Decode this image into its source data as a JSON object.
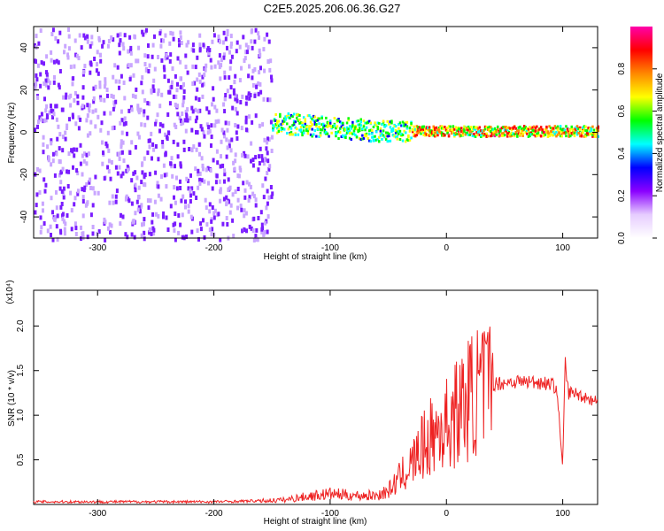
{
  "figure": {
    "title": "C2E5.2025.206.06.36.G27"
  },
  "chart_data": [
    {
      "type": "heatmap",
      "xlabel": "Height of straight line (km)",
      "ylabel": "Frequency (Hz)",
      "xlim": [
        -355,
        130
      ],
      "ylim": [
        -50,
        50
      ],
      "xticks": [
        -300,
        -200,
        -100,
        0,
        100
      ],
      "xtick_labels": [
        "-300",
        "-200",
        "-100",
        "0",
        "100"
      ],
      "yticks": [
        -40,
        -20,
        0,
        20,
        40
      ],
      "ytick_labels": [
        "-40",
        "-20",
        "0",
        "20",
        "40"
      ],
      "colorbar": {
        "label": "Normalized spectral amplitude",
        "range": [
          0,
          1
        ],
        "ticks": [
          0.0,
          0.2,
          0.4,
          0.6,
          0.8
        ],
        "tick_labels": [
          "0.0",
          "0.2",
          "0.4",
          "0.6",
          "0.8"
        ],
        "colormap": [
          "#ffffff",
          "#e6ccff",
          "#8a00ff",
          "#0000ff",
          "#00ffff",
          "#00ff00",
          "#ffff00",
          "#ff8800",
          "#ff0000",
          "#ff00aa"
        ]
      },
      "regions": [
        {
          "name": "noise",
          "x": [
            -355,
            -150
          ],
          "y": [
            -50,
            50
          ],
          "amplitude": 0.2
        },
        {
          "name": "carrier",
          "x": [
            -150,
            130
          ],
          "center_freq": [
            [
              -150,
              5
            ],
            [
              -100,
              3
            ],
            [
              -60,
              1
            ],
            [
              -20,
              1
            ],
            [
              0,
              1
            ],
            [
              50,
              1
            ],
            [
              130,
              1
            ]
          ],
          "amplitude": 0.55
        }
      ],
      "grid": false
    },
    {
      "type": "line",
      "xlabel": "Height of straight line (km)",
      "ylabel": "SNR (10 * v/v)",
      "multiplier_label": "(x10⁴)",
      "xlim": [
        -355,
        130
      ],
      "ylim": [
        0,
        24000
      ],
      "xticks": [
        -300,
        -200,
        -100,
        0,
        100
      ],
      "xtick_labels": [
        "-300",
        "-200",
        "-100",
        "0",
        "100"
      ],
      "yticks": [
        5000,
        10000,
        15000,
        20000
      ],
      "ytick_labels": [
        "0.5",
        "1.0",
        "1.5",
        "2.0"
      ],
      "color": "#ee2222",
      "grid": false,
      "series": [
        {
          "x": [
            -355,
            -300,
            -250,
            -200,
            -160,
            -140,
            -120,
            -100,
            -80,
            -60,
            -50,
            -40,
            -30,
            -20,
            -10,
            0,
            10,
            20,
            30,
            40,
            60,
            80,
            90,
            95,
            100,
            102,
            105,
            110,
            120,
            130
          ],
          "values": [
            300,
            300,
            300,
            300,
            400,
            500,
            900,
            1200,
            1000,
            1000,
            1500,
            3000,
            4500,
            6500,
            8000,
            9000,
            10500,
            12000,
            13000,
            13500,
            13800,
            13700,
            13500,
            13000,
            4000,
            16000,
            12500,
            12500,
            12000,
            11500
          ]
        }
      ]
    }
  ]
}
